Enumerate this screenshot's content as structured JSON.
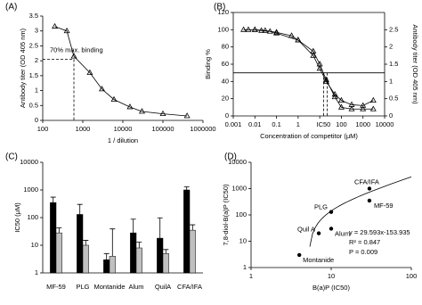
{
  "chart_data": [
    {
      "type": "line",
      "panel_label": "(A)",
      "x_label": "1 / dilution",
      "y_label": "Antibody titer (OD 405 nm)",
      "xlog": true,
      "xlim": [
        100,
        1000000
      ],
      "xticks": [
        100,
        1000,
        10000,
        100000,
        1000000
      ],
      "ylim": [
        0,
        3.5
      ],
      "yticks": [
        0,
        0.5,
        1,
        1.5,
        2,
        2.5,
        3,
        3.5
      ],
      "series": [
        {
          "color": "#000000",
          "marker_fill": "#ffffff",
          "x": [
            200,
            400,
            600,
            1500,
            3000,
            6000,
            15000,
            30000,
            100000,
            400000
          ],
          "values": [
            3.15,
            3.0,
            2.15,
            1.6,
            1.05,
            0.7,
            0.45,
            0.3,
            0.22,
            0.15
          ]
        }
      ],
      "annotation": "70% max. binding",
      "reference": {
        "x": 600,
        "y": 2.05
      }
    },
    {
      "type": "line",
      "panel_label": "(B)",
      "x_label": "Concentration of competitor (μM)",
      "y_label": "Binding %",
      "y2_label": "Antibody titer (OD 405 nm)",
      "xlog": true,
      "xlim": [
        0.001,
        10000
      ],
      "xticks": [
        0.001,
        0.01,
        0.1,
        1,
        10,
        100,
        1000,
        10000
      ],
      "ylim": [
        0,
        120
      ],
      "yticks": [
        0,
        20,
        40,
        60,
        80,
        100,
        120
      ],
      "y2lim": [
        0,
        3
      ],
      "y2ticks": [
        0,
        0.5,
        1,
        1.5,
        2,
        2.5
      ],
      "series": [
        {
          "color": "#000000",
          "marker_fill": "#000000",
          "x": [
            0.003,
            0.005,
            0.01,
            0.02,
            0.05,
            0.1,
            1,
            5,
            10,
            20,
            50,
            100,
            300,
            1000,
            3000
          ],
          "values": [
            100,
            100,
            100,
            99,
            98,
            96,
            88,
            70,
            55,
            40,
            25,
            18,
            13,
            12,
            18
          ]
        },
        {
          "color": "#000000",
          "marker_fill": "#ffffff",
          "x": [
            0.01,
            0.03,
            0.1,
            0.5,
            1,
            5,
            10,
            20,
            50,
            100,
            300,
            1000,
            3000
          ],
          "values": [
            100,
            99,
            97,
            93,
            88,
            75,
            60,
            42,
            22,
            10,
            8,
            8,
            8
          ]
        }
      ],
      "hline": 50,
      "ic50": [
        15,
        22
      ],
      "ic50_label": "IC50"
    },
    {
      "type": "bar",
      "panel_label": "(C)",
      "y_label": "IC50 (μM)",
      "ylog": true,
      "ylim": [
        1,
        10000
      ],
      "yticks": [
        1,
        10,
        100,
        1000,
        10000
      ],
      "categories": [
        "MF-59",
        "PLG",
        "Montanide",
        "Alum",
        "QuilA",
        "CFA/IFA"
      ],
      "series": [
        {
          "color": "#000000",
          "values": [
            350,
            130,
            3,
            28,
            18,
            1000
          ],
          "errors": [
            200,
            170,
            2,
            60,
            80,
            300
          ]
        },
        {
          "color": "#c0c0c0",
          "values": [
            28,
            10,
            4,
            8,
            5,
            35
          ],
          "errors": [
            15,
            5,
            35,
            5,
            2,
            20
          ]
        }
      ]
    },
    {
      "type": "scatter",
      "panel_label": "(D)",
      "x_label": "B(a)P (IC50)",
      "y_label": "7,8-diol-B(a)P (IC50)",
      "xlog": true,
      "xlim": [
        1,
        100
      ],
      "xticks": [
        1,
        10,
        100
      ],
      "ylog": true,
      "ylim": [
        1,
        10000
      ],
      "yticks": [
        1,
        10,
        100,
        1000,
        10000
      ],
      "x": [
        4,
        7,
        10,
        10,
        30,
        30
      ],
      "values": [
        3,
        20,
        30,
        130,
        350,
        1000
      ],
      "point_labels": [
        "Montanide",
        "Quil A",
        "Alum",
        "PLG",
        "MF-59",
        "CFA/IFA"
      ],
      "color": "#000000",
      "fit": {
        "slope": 29.593,
        "intercept": -153.935
      },
      "annotations": [
        "y = 29.593x-153.935",
        "R² = 0.847",
        "P = 0.009"
      ]
    }
  ]
}
